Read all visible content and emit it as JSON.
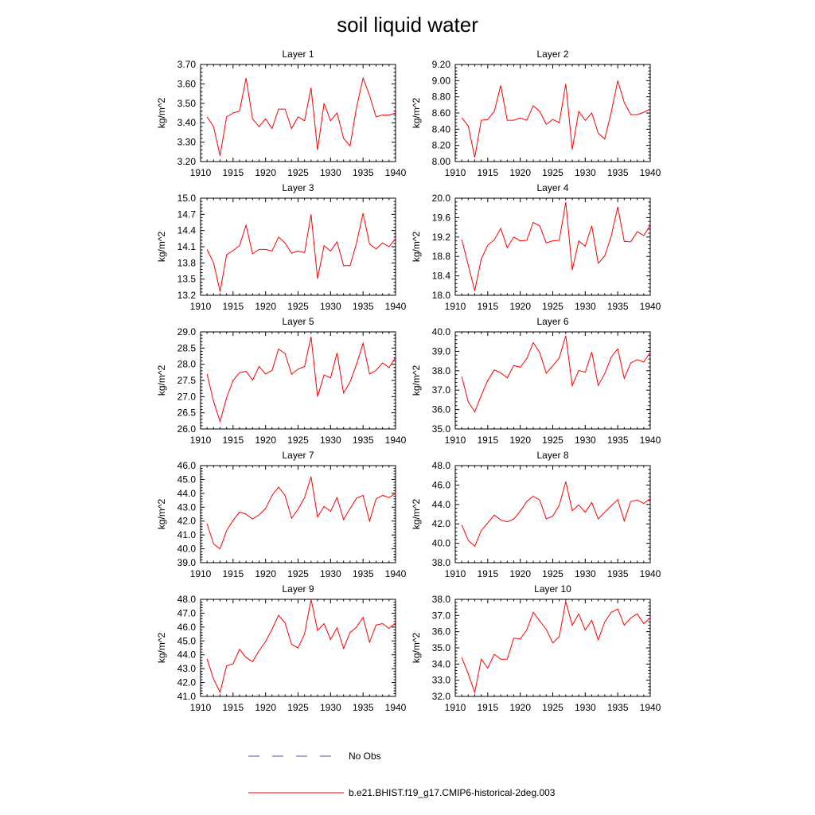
{
  "figure_title": "soil liquid water",
  "legend": [
    {
      "label": "No Obs",
      "color": "#4a58c9",
      "style": "dashed"
    },
    {
      "label": "b.e21.BHIST.f19_g17.CMIP6-historical-2deg.003",
      "color": "#ff0000",
      "style": "solid"
    }
  ],
  "chart_data": [
    {
      "type": "line",
      "title": "Layer 1",
      "ylabel": "kg/m^2",
      "x": [
        1911,
        1912,
        1913,
        1914,
        1915,
        1916,
        1917,
        1918,
        1919,
        1920,
        1921,
        1922,
        1923,
        1924,
        1925,
        1926,
        1927,
        1928,
        1929,
        1930,
        1931,
        1932,
        1933,
        1934,
        1935,
        1936,
        1937,
        1938,
        1939,
        1940
      ],
      "xlim": [
        1910,
        1940
      ],
      "xticks": [
        1910,
        1915,
        1920,
        1925,
        1930,
        1935,
        1940
      ],
      "ylim": [
        3.2,
        3.7
      ],
      "yticks": [
        "3.20",
        "3.30",
        "3.40",
        "3.50",
        "3.60",
        "3.70"
      ],
      "series": [
        {
          "name": "b.e21.BHIST.f19_g17.CMIP6-historical-2deg.003",
          "values": [
            3.43,
            3.38,
            3.23,
            3.43,
            3.45,
            3.46,
            3.63,
            3.42,
            3.38,
            3.42,
            3.37,
            3.47,
            3.47,
            3.37,
            3.43,
            3.41,
            3.58,
            3.26,
            3.5,
            3.41,
            3.45,
            3.32,
            3.28,
            3.48,
            3.63,
            3.54,
            3.43,
            3.44,
            3.44,
            3.45
          ]
        }
      ]
    },
    {
      "type": "line",
      "title": "Layer 2",
      "ylabel": "kg/m^2",
      "x": [
        1911,
        1912,
        1913,
        1914,
        1915,
        1916,
        1917,
        1918,
        1919,
        1920,
        1921,
        1922,
        1923,
        1924,
        1925,
        1926,
        1927,
        1928,
        1929,
        1930,
        1931,
        1932,
        1933,
        1934,
        1935,
        1936,
        1937,
        1938,
        1939,
        1940
      ],
      "xlim": [
        1910,
        1940
      ],
      "xticks": [
        1910,
        1915,
        1920,
        1925,
        1930,
        1935,
        1940
      ],
      "ylim": [
        8.0,
        9.2
      ],
      "yticks": [
        "8.00",
        "8.20",
        "8.40",
        "8.60",
        "8.80",
        "9.00",
        "9.20"
      ],
      "series": [
        {
          "name": "b.e21.BHIST.f19_g17.CMIP6-historical-2deg.003",
          "values": [
            8.54,
            8.44,
            8.05,
            8.51,
            8.52,
            8.62,
            8.94,
            8.51,
            8.51,
            8.54,
            8.51,
            8.69,
            8.62,
            8.46,
            8.52,
            8.48,
            8.96,
            8.15,
            8.62,
            8.51,
            8.6,
            8.35,
            8.28,
            8.61,
            9.0,
            8.73,
            8.58,
            8.58,
            8.61,
            8.65
          ]
        }
      ]
    },
    {
      "type": "line",
      "title": "Layer 3",
      "ylabel": "kg/m^2",
      "x": [
        1911,
        1912,
        1913,
        1914,
        1915,
        1916,
        1917,
        1918,
        1919,
        1920,
        1921,
        1922,
        1923,
        1924,
        1925,
        1926,
        1927,
        1928,
        1929,
        1930,
        1931,
        1932,
        1933,
        1934,
        1935,
        1936,
        1937,
        1938,
        1939,
        1940
      ],
      "xlim": [
        1910,
        1940
      ],
      "xticks": [
        1910,
        1915,
        1920,
        1925,
        1930,
        1935,
        1940
      ],
      "ylim": [
        13.2,
        15.0
      ],
      "yticks": [
        "13.2",
        "13.5",
        "13.8",
        "14.1",
        "14.4",
        "14.7",
        "15.0"
      ],
      "series": [
        {
          "name": "b.e21.BHIST.f19_g17.CMIP6-historical-2deg.003",
          "values": [
            14.05,
            13.8,
            13.27,
            13.95,
            14.03,
            14.12,
            14.5,
            13.97,
            14.05,
            14.05,
            14.02,
            14.28,
            14.17,
            13.98,
            14.02,
            13.99,
            14.7,
            13.51,
            14.12,
            14.02,
            14.19,
            13.75,
            13.75,
            14.17,
            14.72,
            14.15,
            14.06,
            14.17,
            14.1,
            14.25
          ]
        }
      ]
    },
    {
      "type": "line",
      "title": "Layer 4",
      "ylabel": "kg/m^2",
      "x": [
        1911,
        1912,
        1913,
        1914,
        1915,
        1916,
        1917,
        1918,
        1919,
        1920,
        1921,
        1922,
        1923,
        1924,
        1925,
        1926,
        1927,
        1928,
        1929,
        1930,
        1931,
        1932,
        1933,
        1934,
        1935,
        1936,
        1937,
        1938,
        1939,
        1940
      ],
      "xlim": [
        1910,
        1940
      ],
      "xticks": [
        1910,
        1915,
        1920,
        1925,
        1930,
        1935,
        1940
      ],
      "ylim": [
        18.0,
        20.0
      ],
      "yticks": [
        "18.0",
        "18.4",
        "18.8",
        "19.2",
        "19.6",
        "20.0"
      ],
      "series": [
        {
          "name": "b.e21.BHIST.f19_g17.CMIP6-historical-2deg.003",
          "values": [
            19.15,
            18.62,
            18.09,
            18.75,
            19.03,
            19.14,
            19.38,
            18.98,
            19.2,
            19.12,
            19.13,
            19.5,
            19.43,
            19.08,
            19.12,
            19.13,
            19.92,
            18.52,
            19.12,
            19.01,
            19.43,
            18.66,
            18.81,
            19.22,
            19.82,
            19.11,
            19.1,
            19.31,
            19.23,
            19.44
          ]
        }
      ]
    },
    {
      "type": "line",
      "title": "Layer 5",
      "ylabel": "kg/m^2",
      "x": [
        1911,
        1912,
        1913,
        1914,
        1915,
        1916,
        1917,
        1918,
        1919,
        1920,
        1921,
        1922,
        1923,
        1924,
        1925,
        1926,
        1927,
        1928,
        1929,
        1930,
        1931,
        1932,
        1933,
        1934,
        1935,
        1936,
        1937,
        1938,
        1939,
        1940
      ],
      "xlim": [
        1910,
        1940
      ],
      "xticks": [
        1910,
        1915,
        1920,
        1925,
        1930,
        1935,
        1940
      ],
      "ylim": [
        26.0,
        29.0
      ],
      "yticks": [
        "26.0",
        "26.5",
        "27.0",
        "27.5",
        "28.0",
        "28.5",
        "29.0"
      ],
      "series": [
        {
          "name": "b.e21.BHIST.f19_g17.CMIP6-historical-2deg.003",
          "values": [
            27.7,
            26.85,
            26.23,
            26.96,
            27.5,
            27.74,
            27.78,
            27.51,
            27.93,
            27.7,
            27.81,
            28.47,
            28.33,
            27.69,
            27.85,
            27.93,
            28.85,
            27.0,
            27.67,
            27.58,
            28.35,
            27.11,
            27.45,
            28.0,
            28.65,
            27.7,
            27.81,
            28.04,
            27.9,
            28.22
          ]
        }
      ]
    },
    {
      "type": "line",
      "title": "Layer 6",
      "ylabel": "kg/m^2",
      "x": [
        1911,
        1912,
        1913,
        1914,
        1915,
        1916,
        1917,
        1918,
        1919,
        1920,
        1921,
        1922,
        1923,
        1924,
        1925,
        1926,
        1927,
        1928,
        1929,
        1930,
        1931,
        1932,
        1933,
        1934,
        1935,
        1936,
        1937,
        1938,
        1939,
        1940
      ],
      "xlim": [
        1910,
        1940
      ],
      "xticks": [
        1910,
        1915,
        1920,
        1925,
        1930,
        1935,
        1940
      ],
      "ylim": [
        35.0,
        40.0
      ],
      "yticks": [
        "35.0",
        "36.0",
        "37.0",
        "38.0",
        "39.0",
        "40.0"
      ],
      "series": [
        {
          "name": "b.e21.BHIST.f19_g17.CMIP6-historical-2deg.003",
          "values": [
            37.7,
            36.4,
            35.88,
            36.73,
            37.5,
            38.04,
            37.89,
            37.63,
            38.27,
            38.18,
            38.62,
            39.45,
            38.93,
            37.87,
            38.25,
            38.66,
            39.81,
            37.23,
            38.02,
            37.92,
            38.96,
            37.24,
            37.85,
            38.7,
            39.13,
            37.61,
            38.4,
            38.57,
            38.45,
            38.94
          ]
        }
      ]
    },
    {
      "type": "line",
      "title": "Layer 7",
      "ylabel": "kg/m^2",
      "x": [
        1911,
        1912,
        1913,
        1914,
        1915,
        1916,
        1917,
        1918,
        1919,
        1920,
        1921,
        1922,
        1923,
        1924,
        1925,
        1926,
        1927,
        1928,
        1929,
        1930,
        1931,
        1932,
        1933,
        1934,
        1935,
        1936,
        1937,
        1938,
        1939,
        1940
      ],
      "xlim": [
        1910,
        1940
      ],
      "xticks": [
        1910,
        1915,
        1920,
        1925,
        1930,
        1935,
        1940
      ],
      "ylim": [
        39.0,
        46.0
      ],
      "yticks": [
        "39.0",
        "40.0",
        "41.0",
        "42.0",
        "43.0",
        "44.0",
        "45.0",
        "46.0"
      ],
      "series": [
        {
          "name": "b.e21.BHIST.f19_g17.CMIP6-historical-2deg.003",
          "values": [
            41.8,
            40.35,
            40.0,
            41.3,
            42.05,
            42.65,
            42.5,
            42.15,
            42.45,
            42.9,
            43.85,
            44.45,
            43.85,
            42.2,
            42.85,
            43.7,
            45.2,
            42.3,
            43.05,
            42.7,
            43.7,
            42.1,
            42.9,
            43.65,
            43.85,
            42.0,
            43.6,
            43.85,
            43.7,
            44.0
          ]
        }
      ]
    },
    {
      "type": "line",
      "title": "Layer 8",
      "ylabel": "kg/m^2",
      "x": [
        1911,
        1912,
        1913,
        1914,
        1915,
        1916,
        1917,
        1918,
        1919,
        1920,
        1921,
        1922,
        1923,
        1924,
        1925,
        1926,
        1927,
        1928,
        1929,
        1930,
        1931,
        1932,
        1933,
        1934,
        1935,
        1936,
        1937,
        1938,
        1939,
        1940
      ],
      "xlim": [
        1910,
        1940
      ],
      "xticks": [
        1910,
        1915,
        1920,
        1925,
        1930,
        1935,
        1940
      ],
      "ylim": [
        38.0,
        48.0
      ],
      "yticks": [
        "38.0",
        "40.0",
        "42.0",
        "44.0",
        "46.0",
        "48.0"
      ],
      "series": [
        {
          "name": "b.e21.BHIST.f19_g17.CMIP6-historical-2deg.003",
          "values": [
            41.9,
            40.3,
            39.7,
            41.3,
            42.1,
            42.9,
            42.4,
            42.2,
            42.5,
            43.3,
            44.3,
            44.85,
            44.45,
            42.5,
            42.8,
            43.9,
            46.35,
            43.35,
            43.95,
            43.2,
            44.2,
            42.5,
            43.2,
            43.85,
            44.5,
            42.3,
            44.3,
            44.45,
            44.1,
            44.6
          ]
        }
      ]
    },
    {
      "type": "line",
      "title": "Layer 9",
      "ylabel": "kg/m^2",
      "x": [
        1911,
        1912,
        1913,
        1914,
        1915,
        1916,
        1917,
        1918,
        1919,
        1920,
        1921,
        1922,
        1923,
        1924,
        1925,
        1926,
        1927,
        1928,
        1929,
        1930,
        1931,
        1932,
        1933,
        1934,
        1935,
        1936,
        1937,
        1938,
        1939,
        1940
      ],
      "xlim": [
        1910,
        1940
      ],
      "xticks": [
        1910,
        1915,
        1920,
        1925,
        1930,
        1935,
        1940
      ],
      "ylim": [
        41.0,
        48.0
      ],
      "yticks": [
        "41.0",
        "42.0",
        "43.0",
        "44.0",
        "45.0",
        "46.0",
        "47.0",
        "48.0"
      ],
      "series": [
        {
          "name": "b.e21.BHIST.f19_g17.CMIP6-historical-2deg.003",
          "values": [
            43.7,
            42.25,
            41.3,
            43.2,
            43.35,
            44.4,
            43.8,
            43.5,
            44.3,
            44.95,
            45.85,
            46.85,
            46.3,
            44.75,
            44.5,
            45.5,
            48.0,
            45.75,
            46.25,
            45.1,
            45.95,
            44.45,
            45.6,
            46.0,
            46.7,
            44.9,
            46.15,
            46.25,
            45.9,
            46.3
          ]
        }
      ]
    },
    {
      "type": "line",
      "title": "Layer 10",
      "ylabel": "kg/m^2",
      "x": [
        1911,
        1912,
        1913,
        1914,
        1915,
        1916,
        1917,
        1918,
        1919,
        1920,
        1921,
        1922,
        1923,
        1924,
        1925,
        1926,
        1927,
        1928,
        1929,
        1930,
        1931,
        1932,
        1933,
        1934,
        1935,
        1936,
        1937,
        1938,
        1939,
        1940
      ],
      "xlim": [
        1910,
        1940
      ],
      "xticks": [
        1910,
        1915,
        1920,
        1925,
        1930,
        1935,
        1940
      ],
      "ylim": [
        32.0,
        38.0
      ],
      "yticks": [
        "32.0",
        "33.0",
        "34.0",
        "35.0",
        "36.0",
        "37.0",
        "38.0"
      ],
      "series": [
        {
          "name": "b.e21.BHIST.f19_g17.CMIP6-historical-2deg.003",
          "values": [
            34.4,
            33.4,
            32.25,
            34.3,
            33.75,
            34.6,
            34.3,
            34.3,
            35.6,
            35.55,
            36.1,
            37.2,
            36.65,
            36.15,
            35.3,
            35.7,
            37.85,
            36.4,
            37.1,
            36.1,
            36.7,
            35.5,
            36.6,
            37.2,
            37.4,
            36.4,
            36.85,
            37.1,
            36.5,
            36.85
          ]
        }
      ]
    }
  ]
}
